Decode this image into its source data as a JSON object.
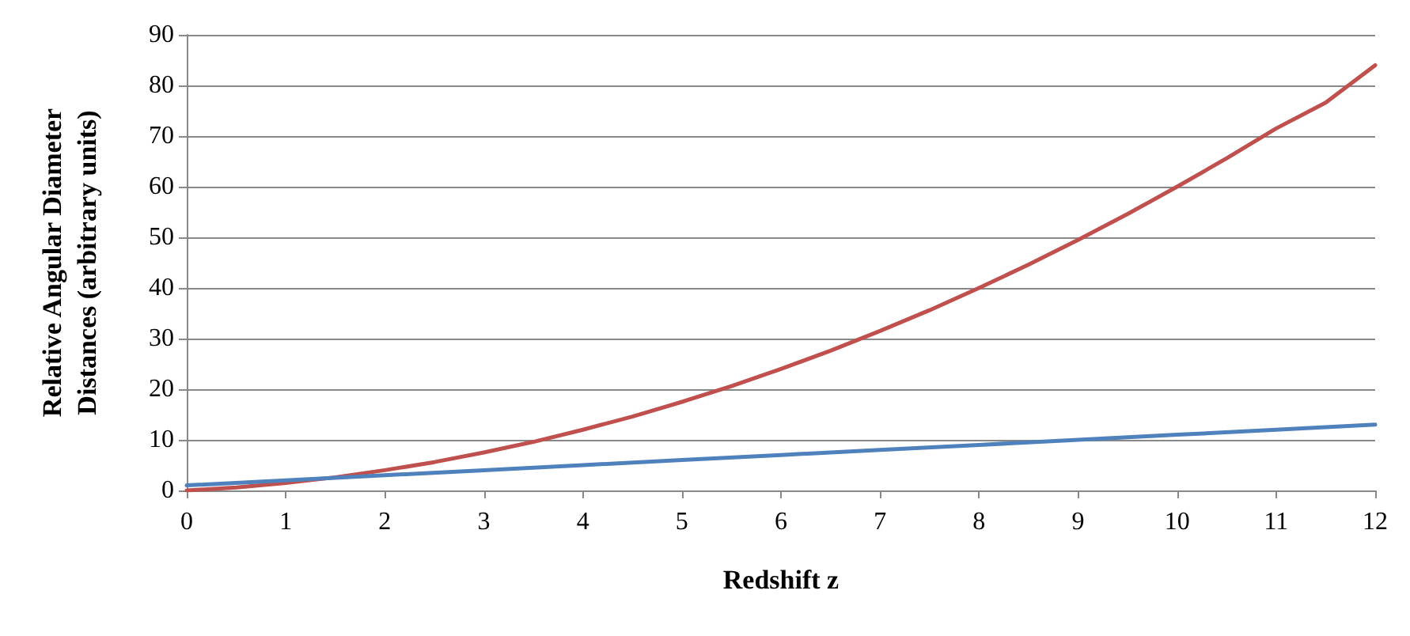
{
  "chart_data": {
    "type": "line",
    "xlabel": "Redshift z",
    "ylabel": "Relative Angular Diameter\nDistances (arbitrary units)",
    "xlim": [
      0,
      12
    ],
    "xticks": [
      0,
      1,
      2,
      3,
      4,
      5,
      6,
      7,
      8,
      9,
      10,
      11,
      12
    ],
    "ylim": [
      0,
      90
    ],
    "yticks": [
      0,
      10,
      20,
      30,
      40,
      50,
      60,
      70,
      80,
      90
    ],
    "grid": "y",
    "marker": "none",
    "line_style": "solid",
    "series": [
      {
        "color": "#c0504d",
        "x": [
          0,
          0.5,
          1,
          1.5,
          2,
          2.5,
          3,
          3.5,
          4,
          4.5,
          5,
          5.5,
          6,
          6.5,
          7,
          7.5,
          8,
          8.5,
          9,
          9.5,
          10,
          10.5,
          11,
          11.5,
          12
        ],
        "values": [
          0,
          0.6,
          1.5,
          2.6,
          4,
          5.6,
          7.5,
          9.6,
          12,
          14.6,
          17.5,
          20.6,
          24,
          27.6,
          31.5,
          35.6,
          40,
          44.6,
          49.5,
          54.6,
          60,
          65.6,
          71.5,
          76.6,
          84
        ]
      },
      {
        "color": "#4f81bd",
        "x": [
          0,
          1,
          2,
          3,
          4,
          5,
          6,
          7,
          8,
          9,
          10,
          11,
          12
        ],
        "values": [
          1,
          2,
          3,
          4,
          5,
          6,
          7,
          8,
          9,
          10,
          11,
          12,
          13
        ]
      }
    ]
  }
}
